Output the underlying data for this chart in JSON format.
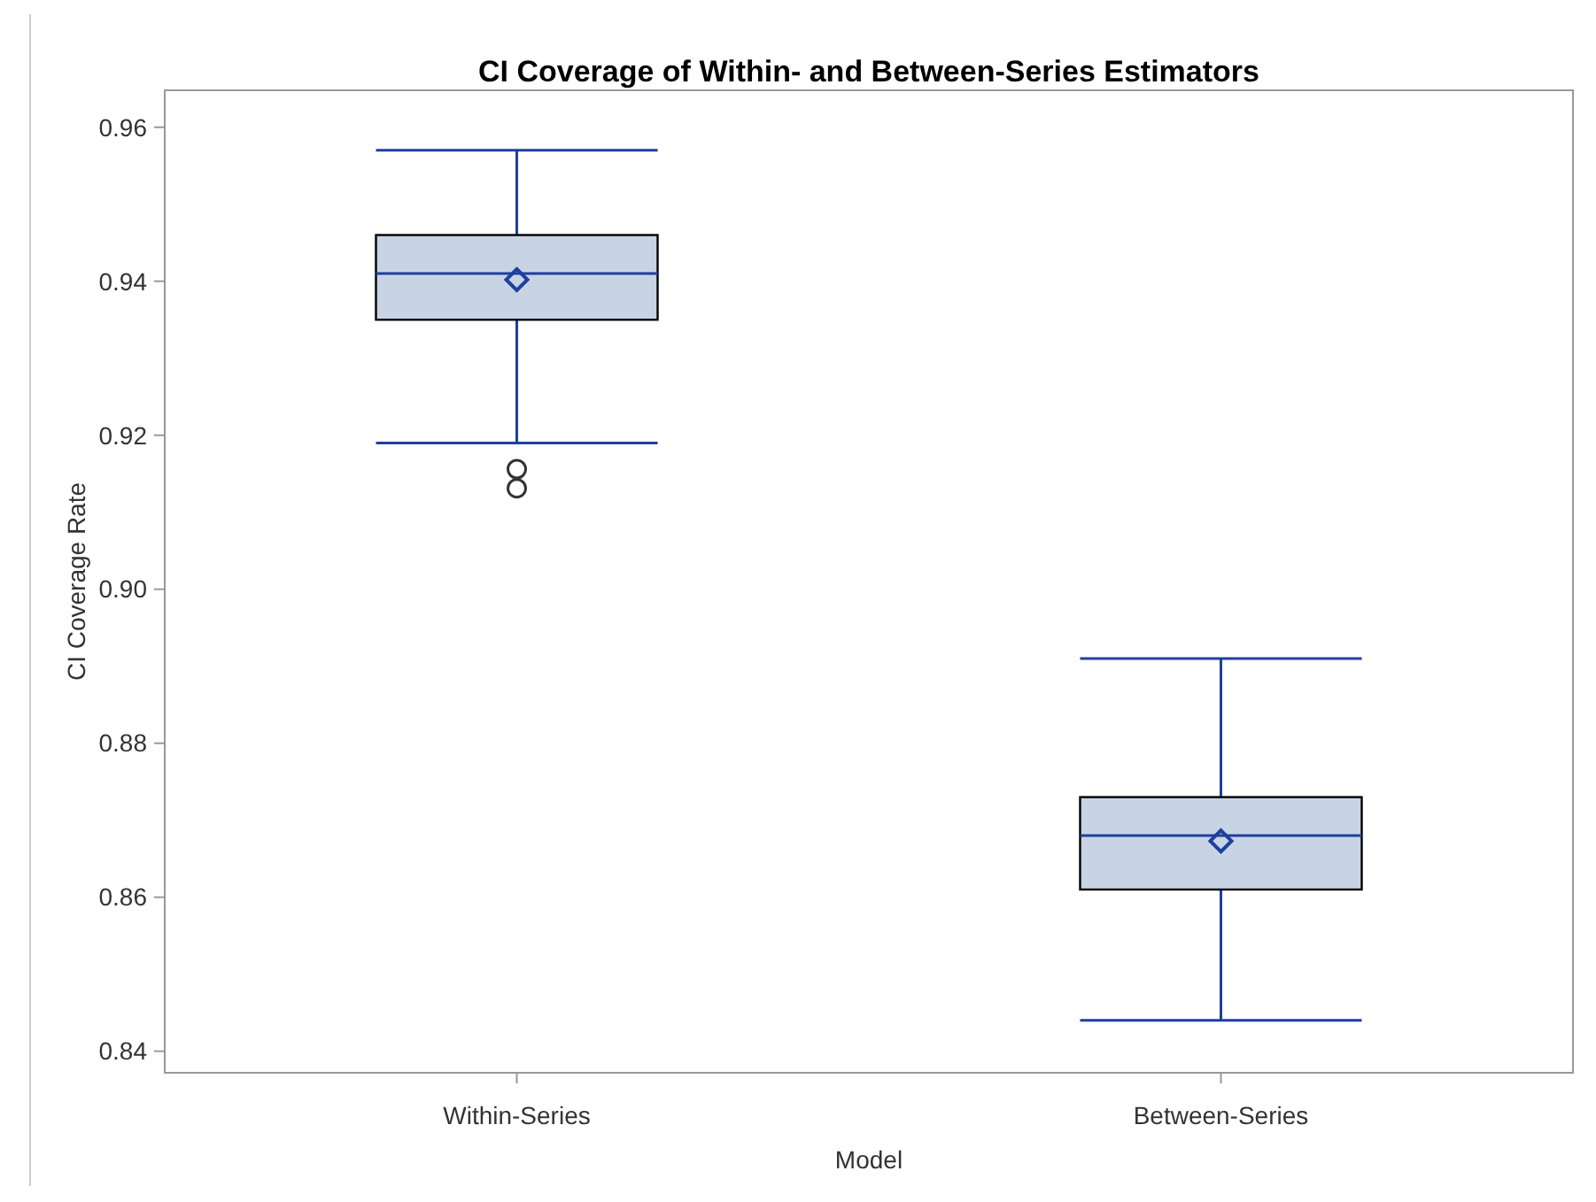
{
  "chart_data": {
    "type": "box",
    "title": "CI Coverage of Within- and Between-Series Estimators",
    "xlabel": "Model",
    "ylabel": "CI Coverage Rate",
    "categories": [
      "Within-Series",
      "Between-Series"
    ],
    "boxes": [
      {
        "low": 0.919,
        "q1": 0.935,
        "median": 0.941,
        "q3": 0.946,
        "high": 0.957,
        "mean": 0.9402,
        "outliers": [
          0.9156,
          0.9131
        ]
      },
      {
        "low": 0.844,
        "q1": 0.861,
        "median": 0.868,
        "q3": 0.873,
        "high": 0.891,
        "mean": 0.8673
      }
    ],
    "color": "#c8d4e4",
    "ylim": [
      0.8372,
      0.9648
    ],
    "yticks": [
      {
        "value": 0.84,
        "label": "0.84"
      },
      {
        "value": 0.86,
        "label": "0.86"
      },
      {
        "value": 0.88,
        "label": "0.88"
      },
      {
        "value": 0.9,
        "label": "0.90"
      },
      {
        "value": 0.92,
        "label": "0.92"
      },
      {
        "value": 0.94,
        "label": "0.94"
      },
      {
        "value": 0.96,
        "label": "0.96"
      }
    ],
    "grid": false,
    "marker": "diamond"
  }
}
